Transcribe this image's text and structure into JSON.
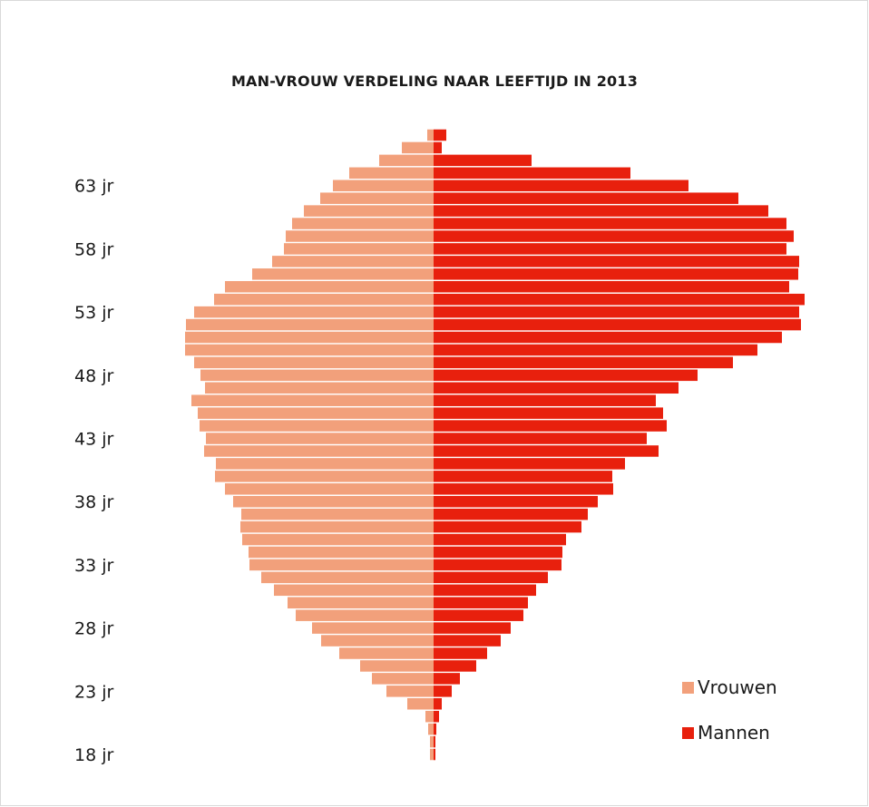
{
  "chart_data": {
    "type": "bar",
    "orientation": "horizontal-population-pyramid",
    "title": "MAN-VROUW VERDELING NAAR LEEFTIJD IN 2013",
    "ages": [
      18,
      19,
      20,
      21,
      22,
      23,
      24,
      25,
      26,
      27,
      28,
      29,
      30,
      31,
      32,
      33,
      34,
      35,
      36,
      37,
      38,
      39,
      40,
      41,
      42,
      43,
      44,
      45,
      46,
      47,
      48,
      49,
      50,
      51,
      52,
      53,
      54,
      55,
      56,
      57,
      58,
      59,
      60,
      61,
      62,
      63,
      64,
      65,
      66,
      67
    ],
    "y_tick_labels": [
      "18 jr",
      "23 jr",
      "28 jr",
      "33 jr",
      "38 jr",
      "43 jr",
      "48 jr",
      "53 jr",
      "58 jr",
      "63 jr"
    ],
    "series": [
      {
        "name": "Vrouwen",
        "color": "#f2a07b",
        "side": "left",
        "values": [
          4,
          4,
          6,
          9,
          29,
          52,
          68,
          81,
          104,
          124,
          134,
          152,
          161,
          176,
          190,
          203,
          204,
          211,
          213,
          212,
          221,
          230,
          241,
          240,
          253,
          251,
          258,
          260,
          267,
          252,
          257,
          264,
          274,
          274,
          273,
          264,
          242,
          230,
          200,
          178,
          165,
          163,
          156,
          143,
          125,
          111,
          93,
          60,
          35,
          7
        ]
      },
      {
        "name": "Mannen",
        "color": "#e8200d",
        "side": "right",
        "values": [
          2,
          2,
          3,
          6,
          9,
          20,
          29,
          47,
          59,
          74,
          85,
          99,
          104,
          113,
          126,
          141,
          142,
          146,
          163,
          170,
          181,
          198,
          197,
          211,
          248,
          235,
          257,
          253,
          245,
          270,
          291,
          330,
          357,
          384,
          405,
          403,
          409,
          392,
          402,
          403,
          389,
          397,
          389,
          369,
          336,
          281,
          217,
          108,
          9,
          14
        ]
      }
    ],
    "legend": {
      "placement": "bottom-right",
      "entries": [
        "Vrouwen",
        "Mannen"
      ]
    },
    "grid": false
  }
}
